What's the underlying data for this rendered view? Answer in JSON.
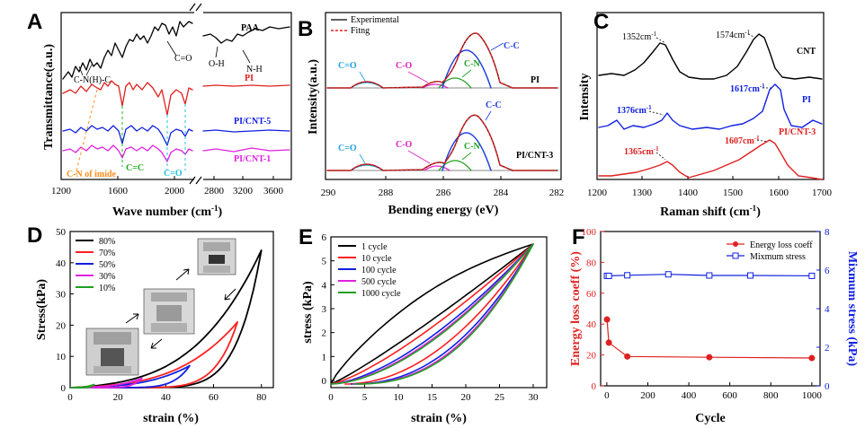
{
  "chart_data": [
    {
      "panel": "A",
      "type": "line",
      "xlabel": "Wave number (cm-1)",
      "ylabel": "Transmittance(a.u.)",
      "x_ticks": [
        "1200",
        "1600",
        "2000",
        "2800",
        "3200",
        "3600"
      ],
      "x_break": "//",
      "series": [
        {
          "name": "PAA",
          "color": "#000000"
        },
        {
          "name": "PI",
          "color": "#e02020"
        },
        {
          "name": "PI/CNT-5",
          "color": "#1020e0"
        },
        {
          "name": "PI/CNT-1",
          "color": "#e020e0"
        }
      ],
      "annotations": [
        {
          "text": "C-N(H)-C",
          "color": "#000000"
        },
        {
          "text": "C=O",
          "color": "#000000"
        },
        {
          "text": "O-H",
          "color": "#000000"
        },
        {
          "text": "N-H",
          "color": "#000000"
        },
        {
          "text": "C-N of imide",
          "color": "#ff8c1a"
        },
        {
          "text": "C=C",
          "color": "#20b020"
        },
        {
          "text": "C=O",
          "color": "#20c0e0"
        }
      ]
    },
    {
      "panel": "B",
      "type": "line",
      "xlabel": "Bending energy (eV)",
      "ylabel": "Intensity(a.u.)",
      "x_ticks": [
        "290",
        "288",
        "286",
        "284",
        "282"
      ],
      "xlim": [
        290,
        282
      ],
      "legend": [
        "Experimental",
        "Fitng"
      ],
      "legend_colors": [
        "#000000",
        "#e02020"
      ],
      "subpanels": [
        {
          "label": "PI",
          "peak_labels": [
            {
              "text": "C=O",
              "color": "#20a0e0"
            },
            {
              "text": "C-O",
              "color": "#e020c0"
            },
            {
              "text": "C-N",
              "color": "#20a020"
            },
            {
              "text": "C-C",
              "color": "#2040e0"
            }
          ]
        },
        {
          "label": "PI/CNT-3",
          "peak_labels": [
            {
              "text": "C=O",
              "color": "#20a0e0"
            },
            {
              "text": "C-O",
              "color": "#e020c0"
            },
            {
              "text": "C-N",
              "color": "#20a020"
            },
            {
              "text": "C-C",
              "color": "#2040e0"
            }
          ]
        }
      ]
    },
    {
      "panel": "C",
      "type": "line",
      "xlabel": "Raman shift (cm-1)",
      "ylabel": "Intensity",
      "x_ticks": [
        "1200",
        "1300",
        "1400",
        "1500",
        "1600",
        "1700"
      ],
      "xlim": [
        1200,
        1700
      ],
      "series": [
        {
          "name": "CNT",
          "color": "#000000",
          "peaks": [
            {
              "text": "1352cm-1",
              "x": 1352
            },
            {
              "text": "1574cm-1",
              "x": 1574
            }
          ]
        },
        {
          "name": "PI",
          "color": "#1020e0",
          "peaks": [
            {
              "text": "1376cm-1",
              "x": 1376
            },
            {
              "text": "1617cm-1",
              "x": 1617
            }
          ]
        },
        {
          "name": "PI/CNT-3",
          "color": "#e02020",
          "peaks": [
            {
              "text": "1365cm-1",
              "x": 1365
            },
            {
              "text": "1607cm-1",
              "x": 1607
            }
          ]
        }
      ]
    },
    {
      "panel": "D",
      "type": "line",
      "xlabel": "strain (%)",
      "ylabel": "Stress(kPa)",
      "x_ticks": [
        "0",
        "20",
        "40",
        "60",
        "80"
      ],
      "y_ticks": [
        "0",
        "10",
        "20",
        "30",
        "40",
        "50"
      ],
      "xlim": [
        0,
        85
      ],
      "ylim": [
        0,
        50
      ],
      "series": [
        {
          "name": "80%",
          "color": "#000000",
          "max_strain": 80,
          "peak_stress": 44
        },
        {
          "name": "70%",
          "color": "#ff2020",
          "max_strain": 70,
          "peak_stress": 21
        },
        {
          "name": "50%",
          "color": "#1020e0",
          "max_strain": 50,
          "peak_stress": 7
        },
        {
          "name": "30%",
          "color": "#e020e0",
          "max_strain": 30,
          "peak_stress": 3
        },
        {
          "name": "10%",
          "color": "#20a020",
          "max_strain": 10,
          "peak_stress": 1
        }
      ]
    },
    {
      "panel": "E",
      "type": "line",
      "xlabel": "strain (%)",
      "ylabel": "stress (kPa)",
      "x_ticks": [
        "0",
        "5",
        "10",
        "15",
        "20",
        "25",
        "30"
      ],
      "y_ticks": [
        "0",
        "1",
        "2",
        "3",
        "4",
        "5",
        "6"
      ],
      "xlim": [
        0,
        32
      ],
      "ylim": [
        -0.3,
        6
      ],
      "series": [
        {
          "name": "1 cycle",
          "color": "#000000"
        },
        {
          "name": "10 cycle",
          "color": "#ff2020"
        },
        {
          "name": "100 cycle",
          "color": "#1020e0"
        },
        {
          "name": "500 cycle",
          "color": "#e020e0"
        },
        {
          "name": "1000 cycle",
          "color": "#20a020"
        }
      ],
      "max_point": {
        "x": 30,
        "y": 5.7
      }
    },
    {
      "panel": "F",
      "type": "scatter",
      "xlabel": "Cycle",
      "ylabel": "Energy loss coeff (%)",
      "ylabel_right": "Mixmum stress (kPa)",
      "x_ticks": [
        "0",
        "200",
        "400",
        "600",
        "800",
        "1000"
      ],
      "y_ticks": [
        "0",
        "20",
        "40",
        "60",
        "80",
        "100"
      ],
      "y2_ticks": [
        "0",
        "2",
        "4",
        "6",
        "8"
      ],
      "xlim": [
        -30,
        1040
      ],
      "ylim": [
        0,
        100
      ],
      "y2lim": [
        0,
        8
      ],
      "series": [
        {
          "name": "Energy loss coeff",
          "color": "#e02020",
          "axis": "left",
          "x": [
            1,
            10,
            100,
            500,
            1000
          ],
          "y": [
            43,
            28,
            19,
            18.5,
            18
          ]
        },
        {
          "name": "Mixmum stress",
          "color": "#1020e0",
          "axis": "right",
          "x": [
            1,
            10,
            100,
            300,
            500,
            700,
            1000
          ],
          "y": [
            5.7,
            5.7,
            5.73,
            5.78,
            5.72,
            5.72,
            5.7
          ]
        }
      ]
    }
  ],
  "colors": {
    "black": "#000000",
    "red": "#e02020",
    "blue": "#1020e0",
    "magenta": "#e020e0",
    "green": "#20a020",
    "orange": "#ff8c1a",
    "cyan": "#20c0e0"
  },
  "photos": {
    "count": 3,
    "icon": "compression-test-photo"
  }
}
